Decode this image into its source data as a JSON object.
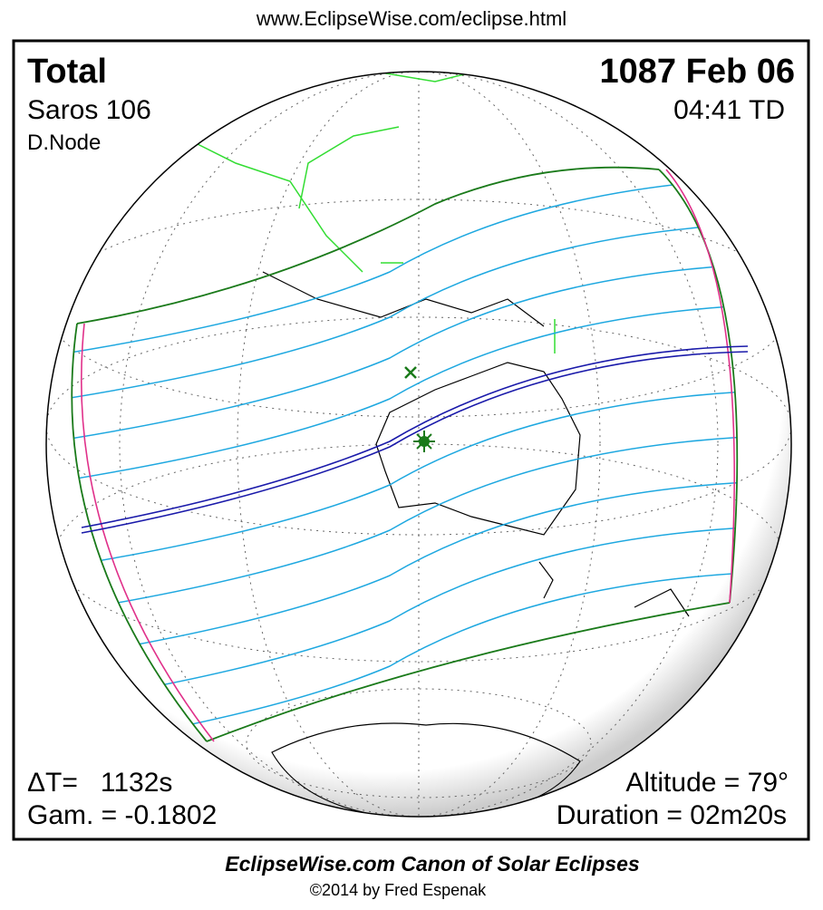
{
  "header": {
    "url": "www.EclipseWise.com/eclipse.html"
  },
  "panel": {
    "eclipse_type": "Total",
    "date": "1087 Feb 06",
    "saros": "Saros 106",
    "time": "04:41 TD",
    "node": "D.Node",
    "delta_t": "ΔT=   1132s",
    "gamma": "Gam. = -0.1802",
    "altitude": "Altitude = 79°",
    "duration": "Duration = 02m20s"
  },
  "footer": {
    "title": "EclipseWise.com Canon of Solar Eclipses",
    "copyright": "©2014 by Fred Espenak"
  }
}
